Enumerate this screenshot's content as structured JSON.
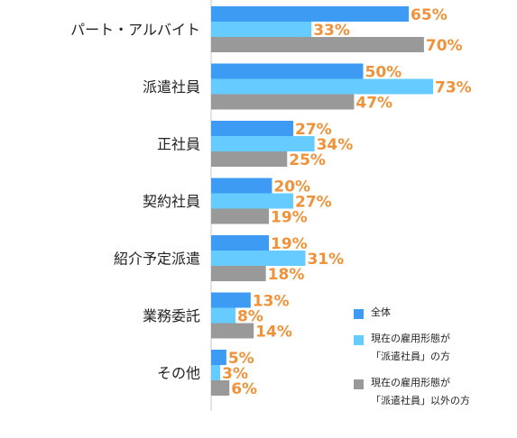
{
  "chart_data": {
    "type": "bar",
    "orientation": "horizontal",
    "categories": [
      "パート・アルバイト",
      "派遣社員",
      "正社員",
      "契約社員",
      "紹介予定派遣",
      "業務委託",
      "その他"
    ],
    "series": [
      {
        "name": "全体",
        "color": "#3d9bf4",
        "values": [
          65,
          50,
          27,
          20,
          19,
          13,
          5
        ]
      },
      {
        "name": "現在の雇用形態が\n「派遣社員」の方",
        "color": "#66ccff",
        "values": [
          33,
          73,
          34,
          27,
          31,
          8,
          3
        ]
      },
      {
        "name": "現在の雇用形態が\n「派遣社員」以外の方",
        "color": "#999999",
        "values": [
          70,
          47,
          25,
          19,
          18,
          14,
          6
        ]
      }
    ],
    "value_suffix": "%",
    "xlim": [
      0,
      100
    ],
    "legend_position": "bottom-right",
    "grid": false
  }
}
